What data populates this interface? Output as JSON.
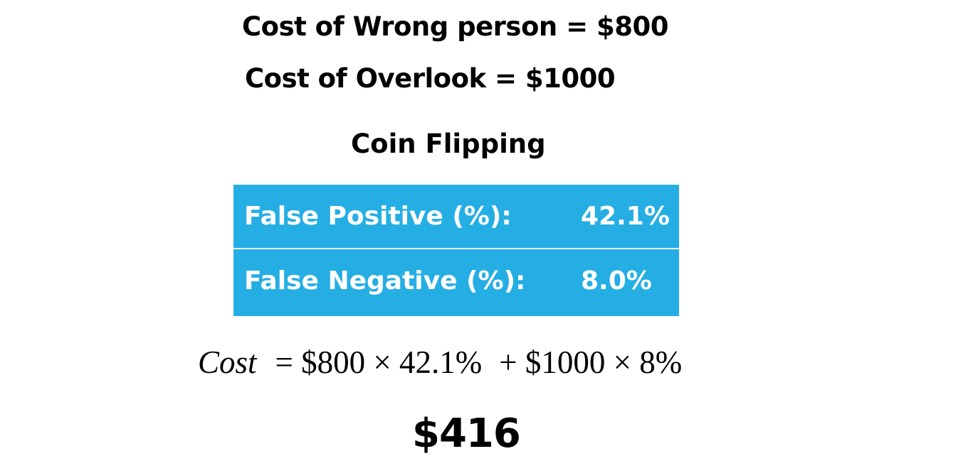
{
  "costs": {
    "wrong_person": "Cost of Wrong person = $800",
    "overlook": "Cost of Overlook = $1000"
  },
  "section_title": "Coin Flipping",
  "rates": {
    "rows": [
      {
        "label": "False Positive (%):",
        "value": "42.1%"
      },
      {
        "label": "False Negative (%):",
        "value": "8.0%"
      }
    ],
    "background_color": "#25aee3",
    "text_color": "#ffffff"
  },
  "formula": {
    "variable": "Cost",
    "term1": "= $800 × 42.1%",
    "term2": "+ $1000 × 8%"
  },
  "total": "$416"
}
